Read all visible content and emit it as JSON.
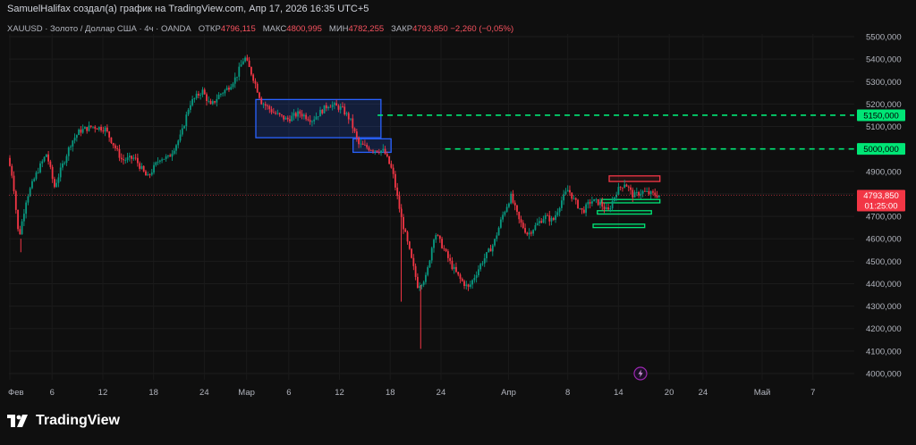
{
  "header": {
    "title": "SamuelHalifax создал(а) график на TradingView.com, Апр 17, 2026 16:35 UTC+5"
  },
  "legend": {
    "symbol": "XAUUSD · Золото / Доллар США · 4ч · OANDA",
    "open_label": "ОТКР",
    "open": "4796,115",
    "high_label": "МАКС",
    "high": "4800,995",
    "low_label": "МИН",
    "low": "4782,255",
    "close_label": "ЗАКР",
    "close": "4793,850",
    "change": "−2,260 (−0,05%)"
  },
  "price_tag": {
    "price": "4793,850",
    "countdown": "01:25:00"
  },
  "level_tags": [
    "5150,000",
    "5000,000"
  ],
  "logo_text": "TradingView",
  "colors": {
    "up": "#089981",
    "down": "#f23645",
    "background": "#0f0f0f",
    "level_line": "#00e676",
    "zone_blue": "#2962ff",
    "zone_red": "#f23645",
    "zone_green": "#00e676"
  },
  "chart_data": {
    "type": "candlestick",
    "timeframe": "4ч",
    "y_axis": {
      "min": 4000,
      "max": 5500,
      "ticks": [
        5500,
        5400,
        5300,
        5200,
        5100,
        5000,
        4900,
        4800,
        4700,
        4600,
        4500,
        4400,
        4300,
        4200,
        4100,
        4000
      ],
      "tick_labels": [
        "5500,000",
        "5400,000",
        "5300,000",
        "5200,000",
        "5100,000",
        "5000,000",
        "4900,000",
        "4800,000",
        "4700,000",
        "4600,000",
        "4500,000",
        "4400,000",
        "4300,000",
        "4200,000",
        "4100,000",
        "4000,000"
      ]
    },
    "x_axis": {
      "labels": [
        "Фев",
        "6",
        "12",
        "18",
        "24",
        "Мар",
        "6",
        "12",
        "18",
        "24",
        "Апр",
        "8",
        "14",
        "20",
        "24",
        "Май",
        "7"
      ],
      "label_days": [
        0,
        5,
        11,
        17,
        23,
        28,
        33,
        39,
        45,
        51,
        59,
        66,
        72,
        78,
        82,
        89,
        95
      ]
    },
    "keypoints": [
      [
        0,
        4960
      ],
      [
        0.6,
        4870
      ],
      [
        1.3,
        4600
      ],
      [
        2.2,
        4780
      ],
      [
        3.5,
        4900
      ],
      [
        4.6,
        4980
      ],
      [
        5.5,
        4830
      ],
      [
        6.4,
        4920
      ],
      [
        7.5,
        5030
      ],
      [
        8.5,
        5080
      ],
      [
        10,
        5100
      ],
      [
        11.5,
        5090
      ],
      [
        12.5,
        5020
      ],
      [
        13.5,
        4950
      ],
      [
        15,
        4960
      ],
      [
        16.5,
        4870
      ],
      [
        18,
        4960
      ],
      [
        19,
        4960
      ],
      [
        20.5,
        5060
      ],
      [
        21.5,
        5200
      ],
      [
        23,
        5260
      ],
      [
        24,
        5190
      ],
      [
        25,
        5240
      ],
      [
        26,
        5270
      ],
      [
        27,
        5320
      ],
      [
        28,
        5410
      ],
      [
        29,
        5320
      ],
      [
        30,
        5210
      ],
      [
        31.5,
        5160
      ],
      [
        33,
        5130
      ],
      [
        34.5,
        5160
      ],
      [
        36,
        5130
      ],
      [
        38,
        5200
      ],
      [
        39.5,
        5180
      ],
      [
        40.5,
        5130
      ],
      [
        41.5,
        5020
      ],
      [
        43,
        5000
      ],
      [
        44.5,
        4990
      ],
      [
        45.5,
        4900
      ],
      [
        46.5,
        4700
      ],
      [
        47.8,
        4500
      ],
      [
        48.5,
        4390
      ],
      [
        49.5,
        4430
      ],
      [
        50.5,
        4630
      ],
      [
        51.5,
        4560
      ],
      [
        52.5,
        4480
      ],
      [
        53.5,
        4420
      ],
      [
        54.5,
        4380
      ],
      [
        56,
        4490
      ],
      [
        57.5,
        4580
      ],
      [
        58.5,
        4700
      ],
      [
        59.5,
        4790
      ],
      [
        60.5,
        4680
      ],
      [
        61.5,
        4620
      ],
      [
        62.5,
        4660
      ],
      [
        63.5,
        4700
      ],
      [
        64.5,
        4680
      ],
      [
        65.5,
        4770
      ],
      [
        66.3,
        4820
      ],
      [
        67,
        4770
      ],
      [
        68,
        4720
      ],
      [
        69,
        4770
      ],
      [
        70,
        4760
      ],
      [
        71,
        4720
      ],
      [
        72,
        4810
      ],
      [
        73,
        4850
      ],
      [
        74,
        4790
      ],
      [
        75,
        4810
      ],
      [
        76,
        4800
      ],
      [
        77,
        4794
      ]
    ],
    "spikes": [
      [
        1.3,
        4540
      ],
      [
        46.3,
        4320
      ],
      [
        48.6,
        4110
      ]
    ],
    "current_price": 4793.85,
    "horizontal_levels": [
      5150,
      5000
    ],
    "zones": [
      {
        "color": "blue",
        "day_from": 29.1,
        "day_to": 43.9,
        "low": 5050,
        "high": 5220
      },
      {
        "color": "blue",
        "day_from": 40.6,
        "day_to": 45.1,
        "low": 4985,
        "high": 5045
      },
      {
        "color": "red",
        "day_from": 70.9,
        "day_to": 76.9,
        "low": 4855,
        "high": 4880
      },
      {
        "color": "green",
        "day_from": 70.0,
        "day_to": 76.9,
        "low": 4760,
        "high": 4775
      },
      {
        "color": "green",
        "day_from": 69.5,
        "day_to": 75.9,
        "low": 4710,
        "high": 4725
      },
      {
        "color": "green",
        "day_from": 69.0,
        "day_to": 75.1,
        "low": 4650,
        "high": 4665
      }
    ]
  }
}
